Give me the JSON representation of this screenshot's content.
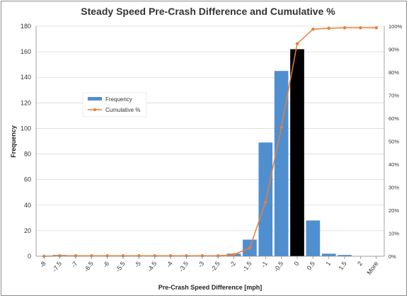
{
  "chart_data": {
    "type": "bar",
    "title": "Steady Speed Pre-Crash Difference and Cumulative %",
    "xlabel": "Pre-Crash Speed Difference [mph]",
    "ylabel": "Frequency",
    "categories": [
      "-8",
      "-7.5",
      "-7",
      "-6.5",
      "-6",
      "-5.5",
      "-5",
      "-4.5",
      "-4",
      "-3.5",
      "-3",
      "-2.5",
      "-2",
      "-1.5",
      "-1",
      "-0.5",
      "0",
      "0.5",
      "1",
      "1.5",
      "2",
      "More"
    ],
    "series": [
      {
        "name": "Frequency",
        "axis": "left",
        "values": [
          0,
          1,
          0,
          0,
          0,
          0,
          0,
          0,
          0,
          0,
          0,
          0,
          2,
          13,
          89,
          145,
          162,
          28,
          2,
          1,
          0,
          0
        ],
        "color": "#4f8fd0",
        "highlight": {
          "category": "0",
          "color": "#000000"
        }
      },
      {
        "name": "Cumulative %",
        "axis": "right",
        "type": "line",
        "values": [
          0.0,
          0.2,
          0.2,
          0.2,
          0.2,
          0.2,
          0.2,
          0.2,
          0.2,
          0.2,
          0.2,
          0.2,
          0.7,
          3.6,
          23.5,
          56.0,
          92.4,
          98.7,
          99.1,
          99.3,
          99.3,
          99.3
        ],
        "color": "#ed7d31"
      }
    ],
    "ylim": [
      0,
      180
    ],
    "yticks": [
      0,
      20,
      40,
      60,
      80,
      100,
      120,
      140,
      160,
      180
    ],
    "y2lim": [
      0,
      100
    ],
    "y2ticks": [
      "0%",
      "10%",
      "20%",
      "30%",
      "40%",
      "50%",
      "60%",
      "70%",
      "80%",
      "90%",
      "100%"
    ],
    "grid": true,
    "legend": {
      "placement": "left",
      "entries": [
        "Frequency",
        "Cumulative %"
      ]
    }
  }
}
